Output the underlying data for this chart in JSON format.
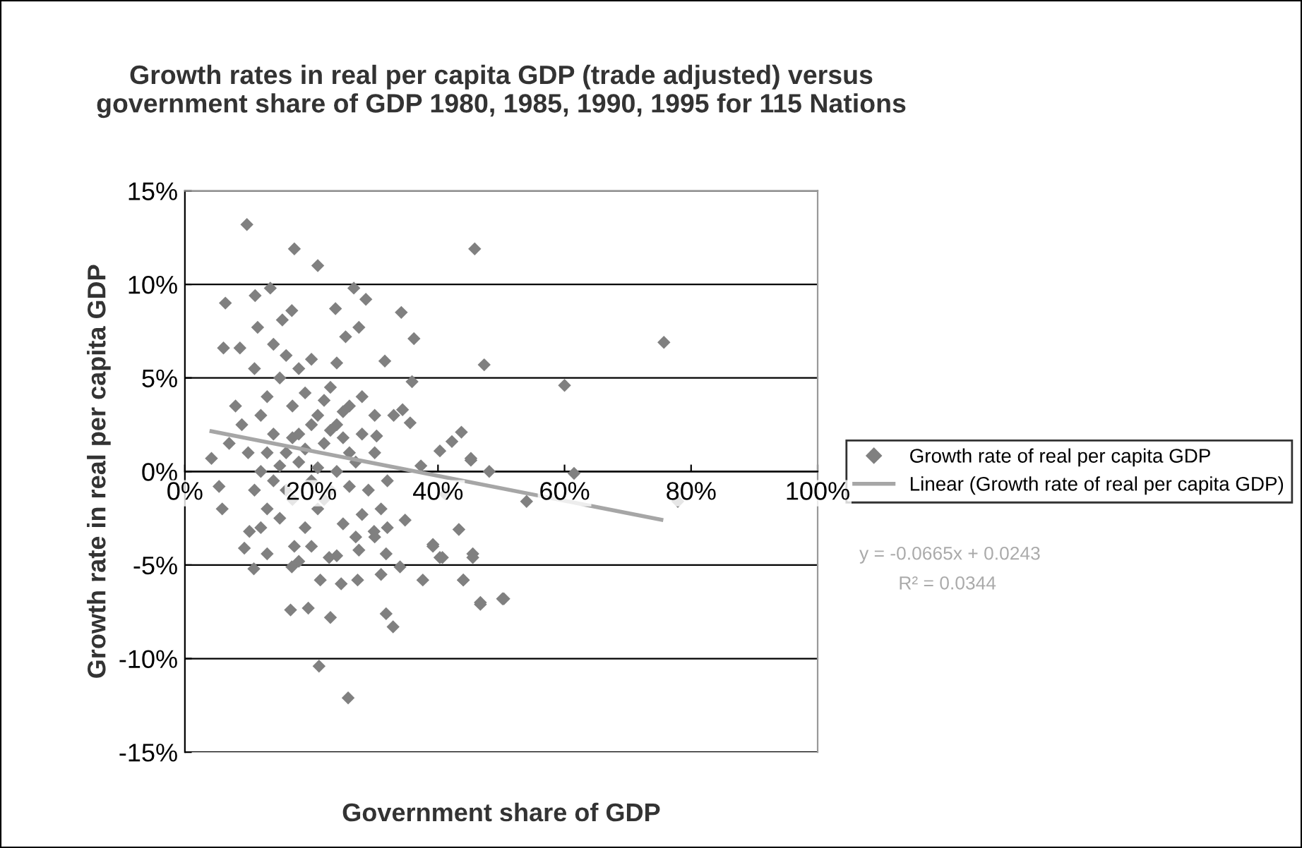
{
  "chart_data": {
    "type": "scatter",
    "title": "Growth rates in real per capita GDP (trade adjusted) versus\ngovernment share of GDP 1980, 1985, 1990, 1995 for 115 Nations",
    "xlabel": "Government share of GDP",
    "ylabel": "Growth rate in real per capita GDP",
    "xlim": [
      0,
      100
    ],
    "ylim": [
      -15,
      15
    ],
    "xticks": [
      {
        "value": 0,
        "label": "0%"
      },
      {
        "value": 20,
        "label": "20%"
      },
      {
        "value": 40,
        "label": "40%"
      },
      {
        "value": 60,
        "label": "60%"
      },
      {
        "value": 80,
        "label": "80%"
      },
      {
        "value": 100,
        "label": "100%"
      }
    ],
    "yticks": [
      {
        "value": -15,
        "label": "-15%"
      },
      {
        "value": -10,
        "label": "-10%"
      },
      {
        "value": -5,
        "label": "-5%"
      },
      {
        "value": 0,
        "label": "0%"
      },
      {
        "value": 5,
        "label": "5%"
      },
      {
        "value": 10,
        "label": "10%"
      },
      {
        "value": 15,
        "label": "15%"
      }
    ],
    "grid": "y",
    "legend": "right",
    "annotations": [
      "y = -0.0665x + 0.0243",
      "R² = 0.0344"
    ],
    "series": [
      {
        "name": "Growth rate of real per capita GDP",
        "marker": "diamond",
        "color": "#808080",
        "x": [
          9.8,
          17.3,
          21.0,
          45.8,
          6.4,
          11.1,
          13.5,
          26.7,
          28.6,
          23.8,
          34.2,
          36.2,
          47.3,
          11.5,
          15.4,
          16.9,
          6.1,
          8.7,
          25.4,
          27.5,
          31.6,
          35.9,
          34.4,
          35.6,
          30.3,
          43.7,
          42.2,
          40.3,
          45.2,
          48.1,
          4.2,
          37.3,
          75.7,
          60.0,
          61.5,
          77.9,
          54.0,
          46.7,
          50.4,
          44.0,
          45.5,
          40.7,
          39.2,
          43.3,
          41.1,
          45.2,
          21.2,
          25.8,
          16.7,
          19.5,
          23.0,
          31.8,
          32.9,
          10.9,
          16.9,
          21.4,
          24.7,
          27.3,
          31.0,
          34.0,
          37.6,
          44.0,
          46.7,
          50.2,
          9.4,
          13.0,
          17.3,
          22.8,
          27.5,
          31.8,
          40.3,
          39.2,
          5.4,
          5.9,
          10.2,
          29.9,
          34.8,
          45.5,
          12,
          14,
          16,
          18,
          20,
          22,
          24,
          26,
          28,
          30,
          13,
          15,
          17,
          19,
          21,
          23,
          25,
          27,
          29,
          31,
          11,
          13,
          15,
          17,
          19,
          21,
          23,
          25,
          27,
          10,
          12,
          14,
          16,
          18,
          20,
          22,
          24,
          26,
          28,
          9,
          11,
          16,
          18,
          20,
          24,
          14,
          22,
          26,
          30,
          32,
          33,
          8,
          7,
          12,
          20,
          24,
          18,
          15,
          17,
          19,
          21,
          23,
          25,
          13,
          28,
          30,
          32
        ],
        "values": [
          13.2,
          11.9,
          11.0,
          11.9,
          9.0,
          9.4,
          9.8,
          9.8,
          9.2,
          8.7,
          8.5,
          7.1,
          5.7,
          7.7,
          8.1,
          8.6,
          6.6,
          6.6,
          7.2,
          7.7,
          5.9,
          4.8,
          3.3,
          2.6,
          1.9,
          2.1,
          1.6,
          1.1,
          0.6,
          0.0,
          0.7,
          0.3,
          6.9,
          4.6,
          -0.1,
          -1.6,
          -1.6,
          -7.0,
          -6.8,
          -5.8,
          -4.6,
          -4.6,
          -4.0,
          -3.1,
          -1.2,
          0.7,
          -10.4,
          -12.1,
          -7.4,
          -7.3,
          -7.8,
          -7.6,
          -8.3,
          -5.2,
          -5.1,
          -5.8,
          -6.0,
          -5.8,
          -5.5,
          -5.1,
          -5.8,
          -5.8,
          -7.1,
          -6.8,
          -4.1,
          -4.4,
          -4.0,
          -4.6,
          -4.2,
          -4.4,
          -4.6,
          -3.9,
          -0.8,
          -2.0,
          -3.2,
          -3.2,
          -2.6,
          -4.4,
          3,
          2,
          1,
          0.5,
          2.5,
          1.5,
          0,
          1,
          2,
          3,
          4,
          5,
          3.5,
          4.2,
          3,
          4.5,
          3.2,
          0.5,
          -1,
          -2,
          -1,
          -2,
          -2.5,
          -1.5,
          -3,
          -2,
          -1,
          -2.8,
          -3.5,
          1,
          0,
          -0.5,
          -1,
          2,
          -0.5,
          -1.5,
          2.5,
          -0.8,
          4,
          2.5,
          5.5,
          6.2,
          5.5,
          6,
          5.8,
          6.8,
          3.8,
          3.5,
          1,
          -0.5,
          3,
          3.5,
          1.5,
          -3,
          -4,
          -4.5,
          -4.8,
          0.3,
          1.8,
          1.2,
          0.2,
          2.2,
          1.8,
          1,
          -2.3,
          -3.5,
          -3
        ]
      },
      {
        "name": "Linear (Growth rate of real per capita GDP)",
        "type": "line",
        "color": "#a6a6a6",
        "x": [
          4.2,
          75.3
        ],
        "values": [
          2.15,
          -2.58
        ]
      }
    ]
  }
}
